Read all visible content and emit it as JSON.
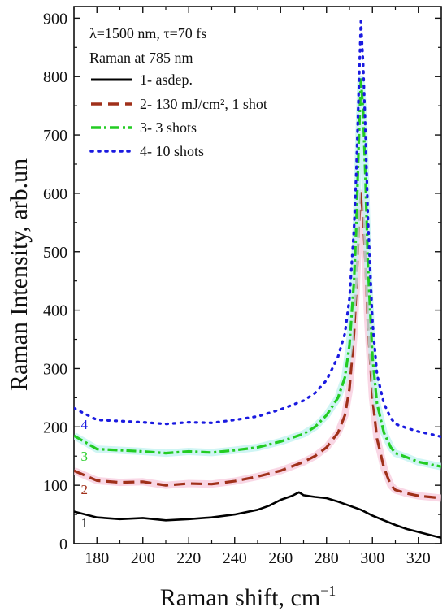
{
  "chart_data": {
    "type": "line",
    "title": "",
    "xlabel": "Raman shift, cm",
    "xlabel_sup": "−1",
    "ylabel": "Raman Intensity, arb.un",
    "xlim": [
      170,
      330
    ],
    "ylim": [
      0,
      920
    ],
    "grid": false,
    "legend_position": "top-left",
    "x_ticks": [
      180,
      200,
      220,
      240,
      260,
      280,
      300,
      320
    ],
    "x_tick_labels": [
      "180",
      "200",
      "220",
      "240",
      "260",
      "280",
      "300",
      "320"
    ],
    "y_ticks": [
      0,
      100,
      200,
      300,
      400,
      500,
      600,
      700,
      800,
      900
    ],
    "y_tick_labels": [
      "0",
      "100",
      "200",
      "300",
      "400",
      "500",
      "600",
      "700",
      "800",
      "900"
    ],
    "annotations": [
      "λ=1500 nm, τ=70 fs",
      "Raman at 785 nm"
    ],
    "series": [
      {
        "name": "1- asdep.",
        "label": "1",
        "color": "#000000",
        "style": "solid",
        "x": [
          170,
          180,
          190,
          200,
          210,
          220,
          230,
          240,
          250,
          255,
          260,
          265,
          268,
          270,
          275,
          280,
          285,
          290,
          295,
          300,
          305,
          310,
          315,
          320,
          325,
          330
        ],
        "y": [
          55,
          45,
          42,
          44,
          40,
          42,
          45,
          50,
          58,
          65,
          75,
          82,
          88,
          83,
          80,
          78,
          72,
          65,
          58,
          48,
          40,
          32,
          25,
          20,
          15,
          10
        ]
      },
      {
        "name": "2- 130 mJ/cm², 1 shot",
        "label": "2",
        "color": "#a0301a",
        "style": "dashed",
        "x": [
          170,
          180,
          190,
          200,
          210,
          220,
          230,
          240,
          250,
          260,
          270,
          275,
          280,
          285,
          288,
          290,
          292,
          293,
          294,
          295,
          296,
          297,
          298,
          300,
          302,
          305,
          308,
          310,
          315,
          320,
          325,
          330
        ],
        "y": [
          125,
          108,
          105,
          106,
          100,
          103,
          102,
          107,
          115,
          125,
          140,
          150,
          165,
          190,
          220,
          265,
          360,
          440,
          540,
          600,
          560,
          480,
          380,
          250,
          180,
          130,
          100,
          92,
          86,
          82,
          80,
          78
        ],
        "endpoint_glow": true
      },
      {
        "name": "3- 3 shots",
        "label": "3",
        "color": "#22cc22",
        "style": "dashdot",
        "x": [
          170,
          180,
          190,
          200,
          210,
          220,
          230,
          240,
          250,
          260,
          270,
          275,
          280,
          285,
          288,
          290,
          292,
          293,
          294,
          295,
          296,
          297,
          298,
          300,
          302,
          305,
          308,
          310,
          315,
          320,
          325,
          330
        ],
        "y": [
          185,
          162,
          160,
          158,
          155,
          158,
          156,
          160,
          165,
          175,
          188,
          200,
          220,
          250,
          285,
          340,
          450,
          550,
          680,
          795,
          740,
          620,
          480,
          320,
          240,
          190,
          165,
          155,
          148,
          140,
          136,
          132
        ]
      },
      {
        "name": "4- 10 shots",
        "label": "4",
        "color": "#1a1ae0",
        "style": "dotted",
        "x": [
          170,
          180,
          190,
          200,
          210,
          220,
          230,
          240,
          250,
          260,
          270,
          275,
          280,
          285,
          288,
          290,
          292,
          293,
          294,
          295,
          296,
          297,
          298,
          300,
          302,
          305,
          308,
          310,
          315,
          320,
          325,
          330
        ],
        "y": [
          232,
          212,
          210,
          208,
          205,
          208,
          207,
          212,
          218,
          230,
          245,
          258,
          280,
          320,
          360,
          420,
          540,
          640,
          770,
          895,
          820,
          700,
          560,
          380,
          290,
          240,
          215,
          205,
          198,
          192,
          188,
          183
        ]
      }
    ]
  }
}
